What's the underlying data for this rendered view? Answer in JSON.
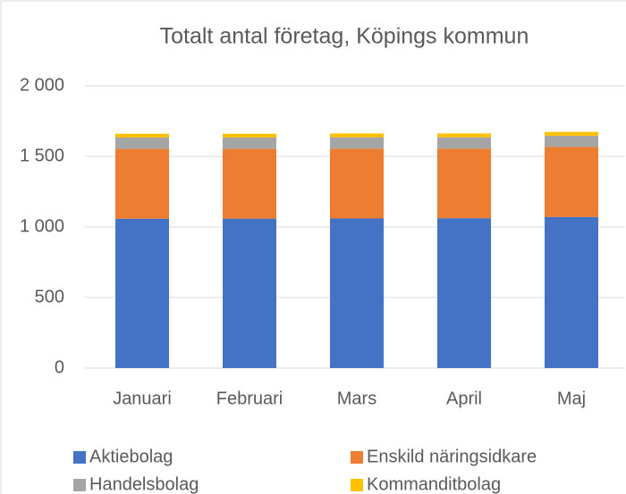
{
  "chart_data": {
    "type": "stacked_bar",
    "title": "Totalt antal företag, Köpings kommun",
    "categories": [
      "Januari",
      "Februari",
      "Mars",
      "April",
      "Maj"
    ],
    "series": [
      {
        "name": "Aktiebolag",
        "color": "#4472c4",
        "values": [
          1058,
          1059,
          1060,
          1062,
          1070
        ]
      },
      {
        "name": "Enskild näringsidkare",
        "color": "#ed7d31",
        "values": [
          495,
          494,
          495,
          493,
          497
        ]
      },
      {
        "name": "Handelsbolag",
        "color": "#a5a5a5",
        "values": [
          80,
          80,
          80,
          80,
          79
        ]
      },
      {
        "name": "Kommanditbolag",
        "color": "#ffc000",
        "values": [
          27,
          27,
          27,
          27,
          27
        ]
      }
    ],
    "ylim": [
      0,
      2000
    ],
    "yticks": [
      0,
      500,
      {
        "value": 1000,
        "label": "1 000"
      },
      {
        "value": 1500,
        "label": "1 500"
      },
      {
        "value": 2000,
        "label": "2 000"
      }
    ],
    "grid": true
  }
}
